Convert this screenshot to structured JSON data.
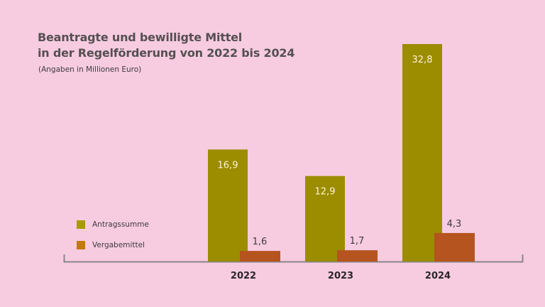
{
  "chart_data": {
    "type": "bar",
    "title": "Beantragte und bewilligte Mittel in der Regelförderung von 2022 bis 2024",
    "title_lines": [
      "Beantragte und bewilligte Mittel",
      "in der Regelförderung von 2022 bis 2024"
    ],
    "subtitle": "(Angaben in Millionen Euro)",
    "xlabel": "",
    "ylabel": "",
    "categories": [
      "2022",
      "2023",
      "2024"
    ],
    "series": [
      {
        "name": "Antragssumme",
        "values": [
          16.9,
          12.9,
          32.8
        ],
        "labels": [
          "16,9",
          "12,9",
          "32,8"
        ],
        "color": "#9c8c00",
        "legend_color": "#a89a06",
        "label_color": "#fff6d0",
        "label_position": "inside-top"
      },
      {
        "name": "Vergabemittel",
        "values": [
          1.6,
          1.7,
          4.3
        ],
        "labels": [
          "1,6",
          "1,7",
          "4,3"
        ],
        "color": "#b5541f",
        "legend_color": "#c27a10",
        "label_color": "#3c3a3c",
        "label_position": "above"
      }
    ],
    "ylim": [
      0,
      32.8
    ],
    "grid": false,
    "legend_position": "left"
  },
  "colors": {
    "background": "#f7cce0",
    "axis": "#8a8688",
    "title": "#555052"
  }
}
